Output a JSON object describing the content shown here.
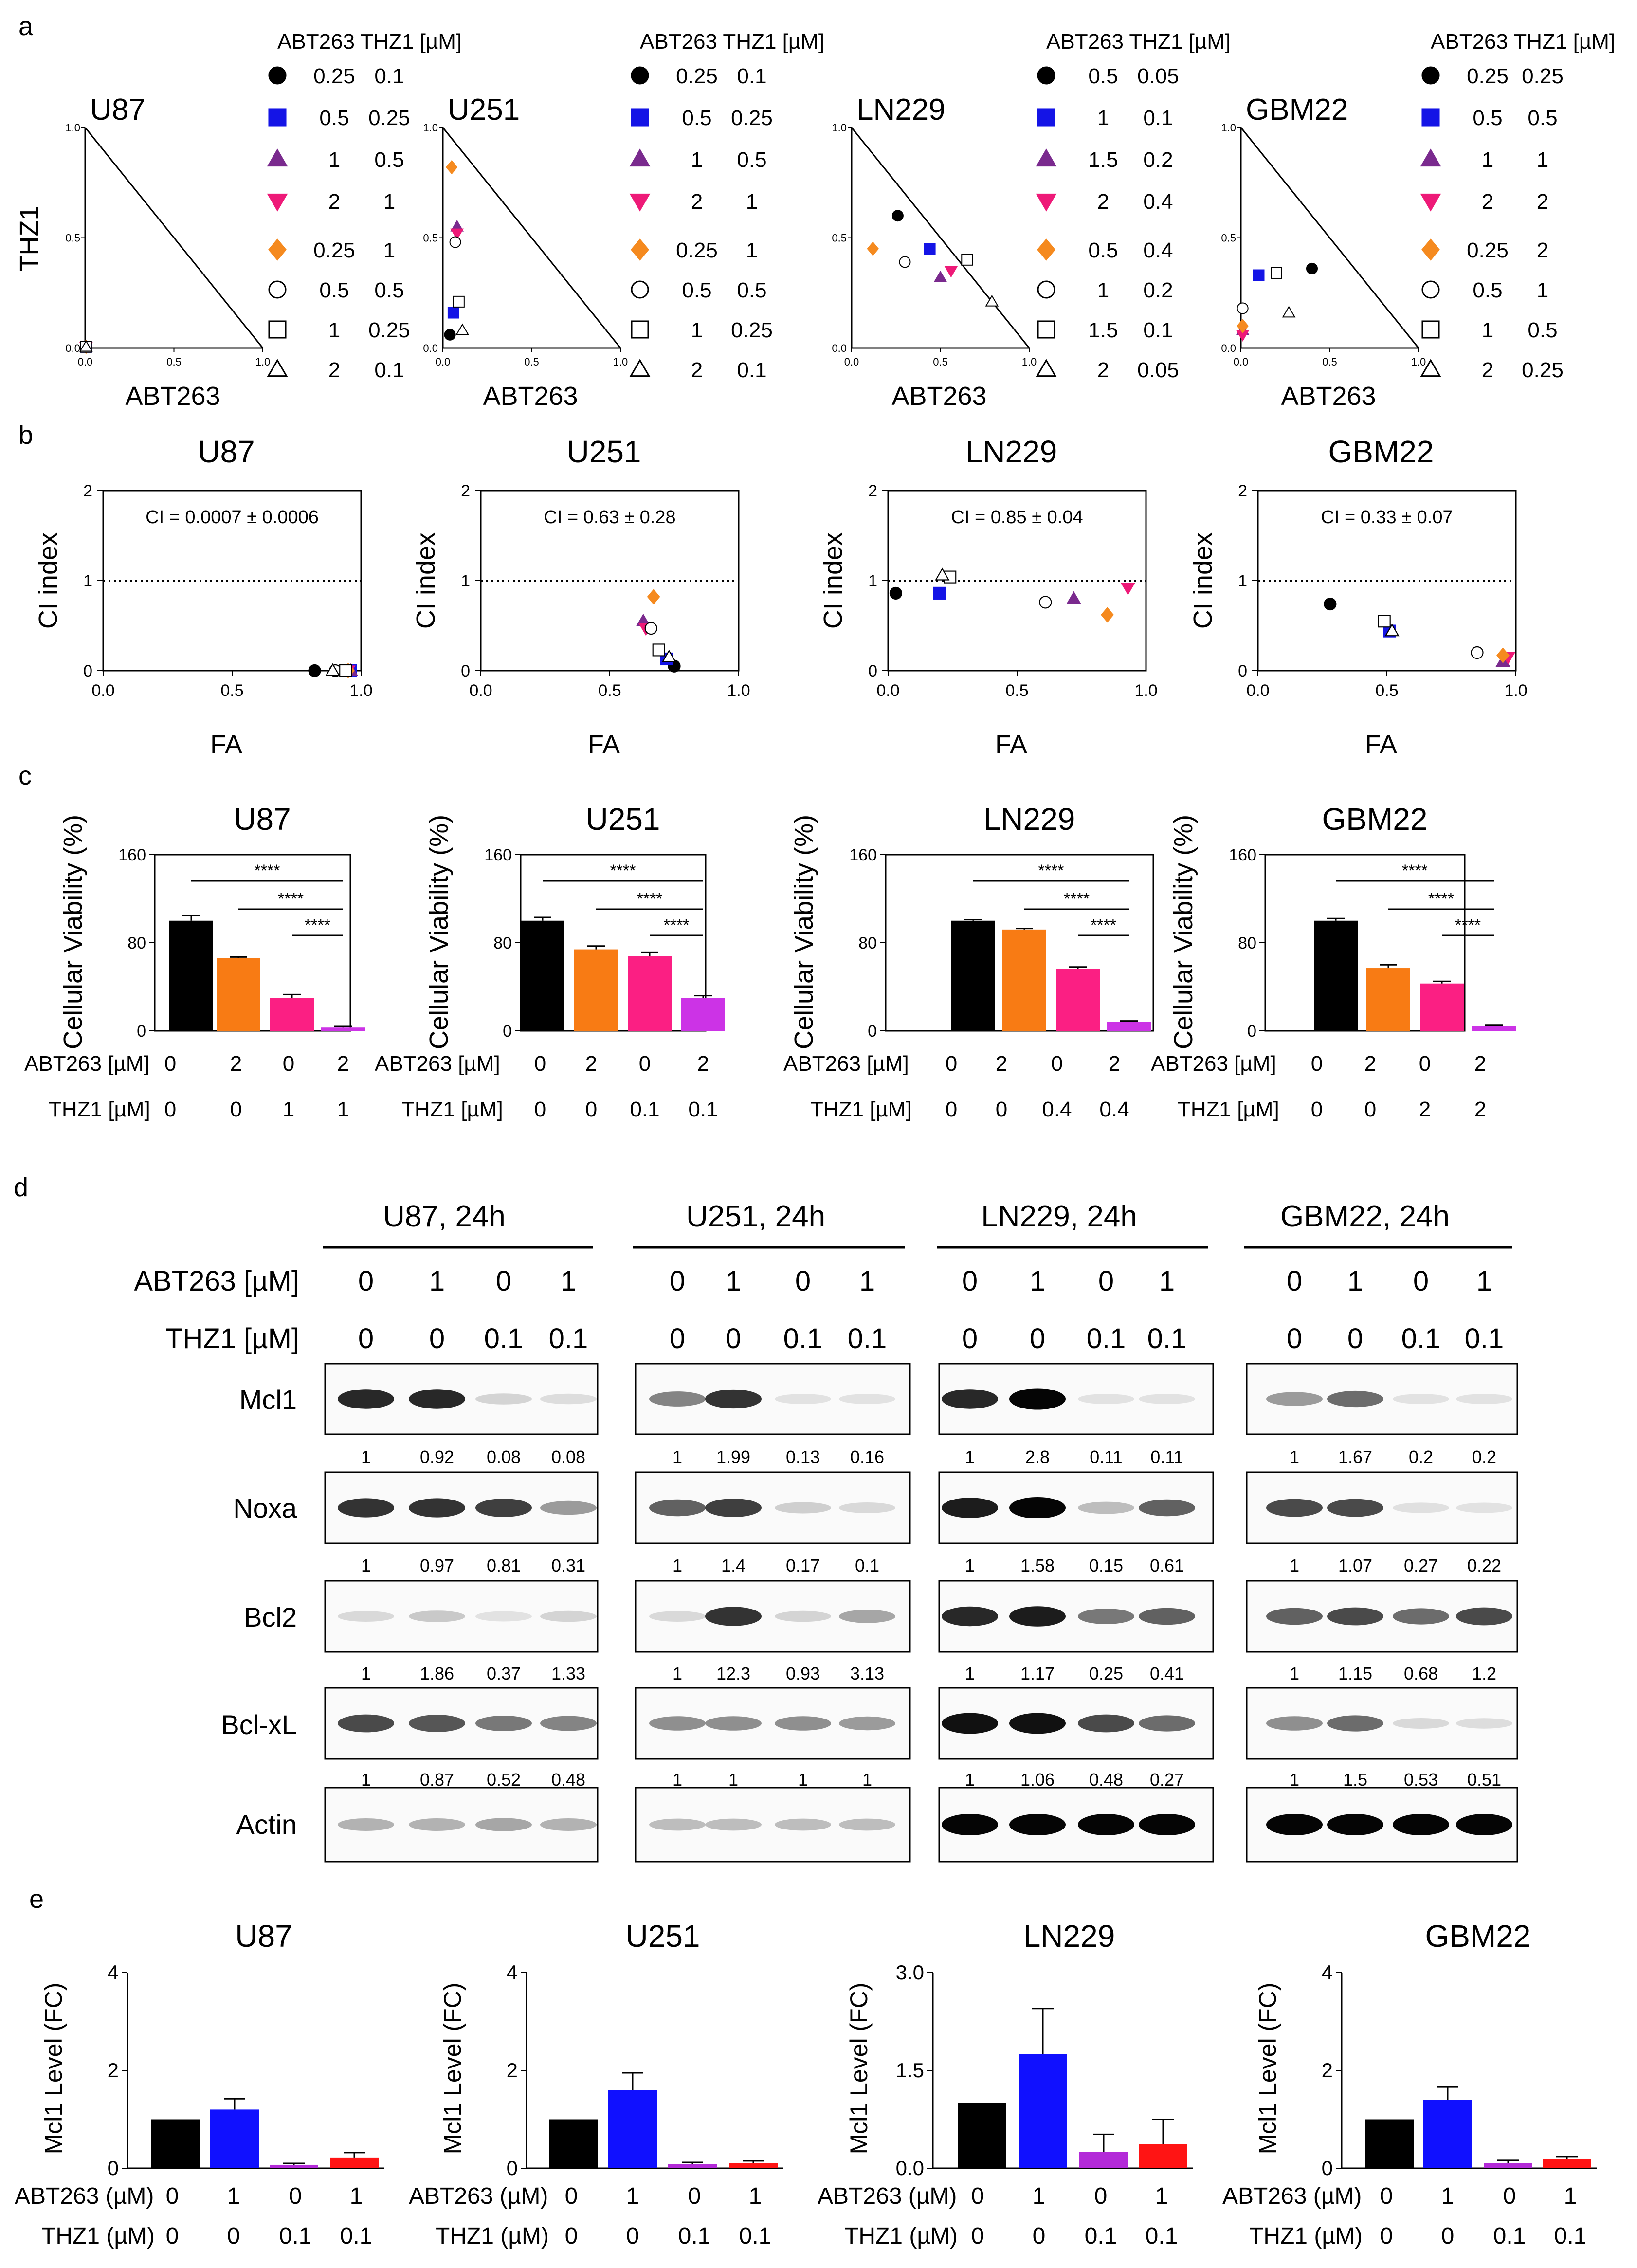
{
  "panel_labels": [
    "a",
    "b",
    "c",
    "d",
    "e"
  ],
  "colors": {
    "black": "#000000",
    "blue": "#1414e6",
    "purple": "#7a2a8e",
    "pink": "#ee1a78",
    "orange": "#f58a1f",
    "bar_orange": "#f87b14",
    "bar_pink": "#fb1f83",
    "bar_magenta": "#cc33e6",
    "e_blue": "#1010ff",
    "e_purple": "#b32ad8",
    "e_red": "#ff1414"
  },
  "marker_legend": [
    "filled-circle",
    "filled-square",
    "filled-up-triangle",
    "filled-down-triangle",
    "filled-diamond",
    "open-circle",
    "open-square",
    "open-up-triangle"
  ],
  "panel_a": {
    "xlabel": "ABT263",
    "ylabel": "THZ1",
    "legend_header": "ABT263 THZ1 [µM]",
    "ticks_x": [
      "0.0",
      "0.5",
      "1.0"
    ],
    "ticks_y": [
      "0.0",
      "0.5",
      "1.0"
    ],
    "chart_data": [
      {
        "type": "scatter",
        "title": "U87",
        "legend": [
          [
            "0.25",
            "0.1"
          ],
          [
            "0.5",
            "0.25"
          ],
          [
            "1",
            "0.5"
          ],
          [
            "2",
            "1"
          ],
          [
            "0.25",
            "1"
          ],
          [
            "0.5",
            "0.5"
          ],
          [
            "1",
            "0.25"
          ],
          [
            "2",
            "0.1"
          ]
        ],
        "points": [
          [
            0.005,
            0.005
          ],
          [
            0.005,
            0.005
          ],
          [
            0.005,
            0.005
          ],
          [
            0.005,
            0.005
          ],
          [
            0.005,
            0.005
          ],
          [
            0.005,
            0.005
          ],
          [
            0.005,
            0.005
          ],
          [
            0.005,
            0.005
          ]
        ]
      },
      {
        "type": "scatter",
        "title": "U251",
        "legend": [
          [
            "0.25",
            "0.1"
          ],
          [
            "0.5",
            "0.25"
          ],
          [
            "1",
            "0.5"
          ],
          [
            "2",
            "1"
          ],
          [
            "0.25",
            "1"
          ],
          [
            "0.5",
            "0.5"
          ],
          [
            "1",
            "0.25"
          ],
          [
            "2",
            "0.1"
          ]
        ],
        "points": [
          [
            0.04,
            0.06
          ],
          [
            0.06,
            0.16
          ],
          [
            0.08,
            0.55
          ],
          [
            0.08,
            0.52
          ],
          [
            0.05,
            0.82
          ],
          [
            0.07,
            0.48
          ],
          [
            0.09,
            0.21
          ],
          [
            0.11,
            0.08
          ]
        ]
      },
      {
        "type": "scatter",
        "title": "LN229",
        "legend": [
          [
            "0.5",
            "0.05"
          ],
          [
            "1",
            "0.1"
          ],
          [
            "1.5",
            "0.2"
          ],
          [
            "2",
            "0.4"
          ],
          [
            "0.5",
            "0.4"
          ],
          [
            "1",
            "0.2"
          ],
          [
            "1.5",
            "0.1"
          ],
          [
            "2",
            "0.05"
          ]
        ],
        "points": [
          [
            0.26,
            0.6
          ],
          [
            0.44,
            0.45
          ],
          [
            0.5,
            0.32
          ],
          [
            0.56,
            0.35
          ],
          [
            0.12,
            0.45
          ],
          [
            0.3,
            0.39
          ],
          [
            0.65,
            0.4
          ],
          [
            0.79,
            0.21
          ]
        ]
      },
      {
        "type": "scatter",
        "title": "GBM22",
        "legend": [
          [
            "0.25",
            "0.25"
          ],
          [
            "0.5",
            "0.5"
          ],
          [
            "1",
            "1"
          ],
          [
            "2",
            "2"
          ],
          [
            "0.25",
            "2"
          ],
          [
            "0.5",
            "1"
          ],
          [
            "1",
            "0.5"
          ],
          [
            "2",
            "0.25"
          ]
        ],
        "points": [
          [
            0.4,
            0.36
          ],
          [
            0.1,
            0.33
          ],
          [
            0.01,
            0.08
          ],
          [
            0.01,
            0.06
          ],
          [
            0.01,
            0.1
          ],
          [
            0.01,
            0.18
          ],
          [
            0.2,
            0.34
          ],
          [
            0.27,
            0.16
          ]
        ]
      }
    ]
  },
  "panel_b": {
    "xlabel": "FA",
    "ylabel": "CI index",
    "ticks_x": [
      "0.0",
      "0.5",
      "1.0"
    ],
    "ticks_y": [
      "0",
      "1",
      "2"
    ],
    "chart_data": [
      {
        "type": "scatter",
        "title": "U87",
        "annotation": "CI = 0.0007 ± 0.0006",
        "points": [
          [
            0.82,
            0.0
          ],
          [
            0.96,
            0.0
          ],
          [
            0.96,
            0.0
          ],
          [
            0.95,
            0.0
          ],
          [
            0.95,
            0.0
          ],
          [
            0.9,
            0.0
          ],
          [
            0.94,
            0.0
          ],
          [
            0.89,
            0.0
          ]
        ]
      },
      {
        "type": "scatter",
        "title": "U251",
        "annotation": "CI = 0.63 ± 0.28",
        "points": [
          [
            0.75,
            0.05
          ],
          [
            0.72,
            0.13
          ],
          [
            0.63,
            0.55
          ],
          [
            0.64,
            0.47
          ],
          [
            0.67,
            0.82
          ],
          [
            0.66,
            0.47
          ],
          [
            0.69,
            0.23
          ],
          [
            0.73,
            0.15
          ]
        ]
      },
      {
        "type": "scatter",
        "title": "LN229",
        "annotation": "CI = 0.85 ± 0.04",
        "points": [
          [
            0.03,
            0.86
          ],
          [
            0.2,
            0.86
          ],
          [
            0.72,
            0.8
          ],
          [
            0.93,
            0.92
          ],
          [
            0.85,
            0.62
          ],
          [
            0.61,
            0.76
          ],
          [
            0.24,
            1.04
          ],
          [
            0.21,
            1.06
          ]
        ]
      },
      {
        "type": "scatter",
        "title": "GBM22",
        "annotation": "CI = 0.33 ± 0.07",
        "points": [
          [
            0.28,
            0.74
          ],
          [
            0.51,
            0.44
          ],
          [
            0.95,
            0.1
          ],
          [
            0.97,
            0.15
          ],
          [
            0.95,
            0.17
          ],
          [
            0.85,
            0.2
          ],
          [
            0.49,
            0.55
          ],
          [
            0.52,
            0.44
          ]
        ]
      }
    ]
  },
  "panel_c": {
    "ylabel": "Cellular Viability (%)",
    "sig": "****",
    "ticks_y": [
      "0",
      "80",
      "160"
    ],
    "row1_label": "ABT263 [µM]",
    "row2_label": "THZ1 [µM]",
    "chart_data": [
      {
        "type": "bar",
        "title": "U87",
        "ylim": [
          0,
          160
        ],
        "values": [
          100,
          66,
          30,
          3
        ],
        "errors": [
          5,
          1,
          3,
          1
        ],
        "abt": [
          "0",
          "2",
          "0",
          "2"
        ],
        "thz": [
          "0",
          "0",
          "1",
          "1"
        ]
      },
      {
        "type": "bar",
        "title": "U251",
        "ylim": [
          0,
          160
        ],
        "values": [
          100,
          74,
          68,
          30
        ],
        "errors": [
          3,
          3,
          3,
          2
        ],
        "abt": [
          "0",
          "2",
          "0",
          "2"
        ],
        "thz": [
          "0",
          "0",
          "0.1",
          "0.1"
        ]
      },
      {
        "type": "bar",
        "title": "LN229",
        "ylim": [
          0,
          160
        ],
        "values": [
          100,
          92,
          56,
          8
        ],
        "errors": [
          1,
          1,
          2,
          1
        ],
        "abt": [
          "0",
          "2",
          "0",
          "2"
        ],
        "thz": [
          "0",
          "0",
          "0.4",
          "0.4"
        ]
      },
      {
        "type": "bar",
        "title": "GBM22",
        "ylim": [
          0,
          160
        ],
        "values": [
          100,
          57,
          43,
          4
        ],
        "errors": [
          2,
          3,
          2,
          1
        ],
        "abt": [
          "0",
          "2",
          "0",
          "2"
        ],
        "thz": [
          "0",
          "0",
          "2",
          "2"
        ]
      }
    ]
  },
  "panel_d": {
    "row1_label": "ABT263 [µM]",
    "row2_label": "THZ1 [µM]",
    "abt": [
      "0",
      "1",
      "0",
      "1"
    ],
    "thz": [
      "0",
      "0",
      "0.1",
      "0.1"
    ],
    "proteins": [
      "Mcl1",
      "Noxa",
      "Bcl2",
      "Bcl-xL",
      "Actin"
    ],
    "blots": [
      {
        "title": "U87, 24h",
        "quant": [
          [
            "1",
            "0.92",
            "0.08",
            "0.08"
          ],
          [
            "1",
            "0.97",
            "0.81",
            "0.31"
          ],
          [
            "1",
            "1.86",
            "0.37",
            "1.33"
          ],
          [
            "1",
            "0.87",
            "0.52",
            "0.48"
          ]
        ],
        "intensity": [
          [
            0.85,
            0.85,
            0.1,
            0.06
          ],
          [
            0.8,
            0.8,
            0.75,
            0.35
          ],
          [
            0.08,
            0.15,
            0.04,
            0.1
          ],
          [
            0.7,
            0.65,
            0.5,
            0.45
          ],
          [
            0.25,
            0.25,
            0.3,
            0.25
          ]
        ]
      },
      {
        "title": "U251, 24h",
        "quant": [
          [
            "1",
            "1.99",
            "0.13",
            "0.16"
          ],
          [
            "1",
            "1.4",
            "0.17",
            "0.1"
          ],
          [
            "1",
            "12.3",
            "0.93",
            "3.13"
          ],
          [
            "1",
            "1",
            "1",
            "1"
          ]
        ],
        "intensity": [
          [
            0.45,
            0.8,
            0.04,
            0.04
          ],
          [
            0.6,
            0.75,
            0.12,
            0.08
          ],
          [
            0.08,
            0.8,
            0.1,
            0.3
          ],
          [
            0.4,
            0.4,
            0.4,
            0.35
          ],
          [
            0.2,
            0.2,
            0.2,
            0.2
          ]
        ]
      },
      {
        "title": "LN229, 24h",
        "quant": [
          [
            "1",
            "2.8",
            "0.11",
            "0.11"
          ],
          [
            "1",
            "1.58",
            "0.15",
            "0.61"
          ],
          [
            "1",
            "1.17",
            "0.25",
            "0.41"
          ],
          [
            "1",
            "1.06",
            "0.48",
            "0.27"
          ]
        ],
        "intensity": [
          [
            0.85,
            1,
            0.04,
            0.04
          ],
          [
            0.9,
            1,
            0.2,
            0.6
          ],
          [
            0.85,
            0.9,
            0.5,
            0.6
          ],
          [
            0.95,
            0.95,
            0.7,
            0.55
          ],
          [
            1,
            1,
            1,
            1
          ]
        ]
      },
      {
        "title": "GBM22, 24h",
        "quant": [
          [
            "1",
            "1.67",
            "0.2",
            "0.2"
          ],
          [
            "1",
            "1.07",
            "0.27",
            "0.22"
          ],
          [
            "1",
            "1.15",
            "0.68",
            "1.2"
          ],
          [
            "1",
            "1.5",
            "0.53",
            "0.51"
          ]
        ],
        "intensity": [
          [
            0.35,
            0.55,
            0.04,
            0.04
          ],
          [
            0.7,
            0.7,
            0.05,
            0.04
          ],
          [
            0.6,
            0.7,
            0.55,
            0.7
          ],
          [
            0.4,
            0.55,
            0.08,
            0.06
          ],
          [
            1,
            1,
            1,
            1
          ]
        ]
      }
    ]
  },
  "panel_e": {
    "ylabel": "Mcl1 Level (FC)",
    "row1_label": "ABT263 (µM)",
    "row2_label": "THZ1 (µM)",
    "abt": [
      "0",
      "1",
      "0",
      "1"
    ],
    "thz": [
      "0",
      "0",
      "0.1",
      "0.1"
    ],
    "chart_data": [
      {
        "type": "bar",
        "title": "U87",
        "ylim": [
          0,
          4
        ],
        "ticks": [
          "0",
          "2",
          "4"
        ],
        "values": [
          1.0,
          1.2,
          0.07,
          0.22
        ],
        "errors": [
          0,
          0.22,
          0.03,
          0.1
        ]
      },
      {
        "type": "bar",
        "title": "U251",
        "ylim": [
          0,
          4
        ],
        "ticks": [
          "0",
          "2",
          "4"
        ],
        "values": [
          1.0,
          1.6,
          0.08,
          0.1
        ],
        "errors": [
          0,
          0.35,
          0.04,
          0.05
        ]
      },
      {
        "type": "bar",
        "title": "LN229",
        "ylim": [
          0,
          3
        ],
        "ticks": [
          "0.0",
          "1.5",
          "3.0"
        ],
        "values": [
          1.0,
          1.75,
          0.25,
          0.37
        ],
        "errors": [
          0,
          0.7,
          0.27,
          0.38
        ]
      },
      {
        "type": "bar",
        "title": "GBM22",
        "ylim": [
          0,
          4
        ],
        "ticks": [
          "0",
          "2",
          "4"
        ],
        "values": [
          1.0,
          1.4,
          0.1,
          0.18
        ],
        "errors": [
          0,
          0.26,
          0.06,
          0.06
        ]
      }
    ]
  }
}
